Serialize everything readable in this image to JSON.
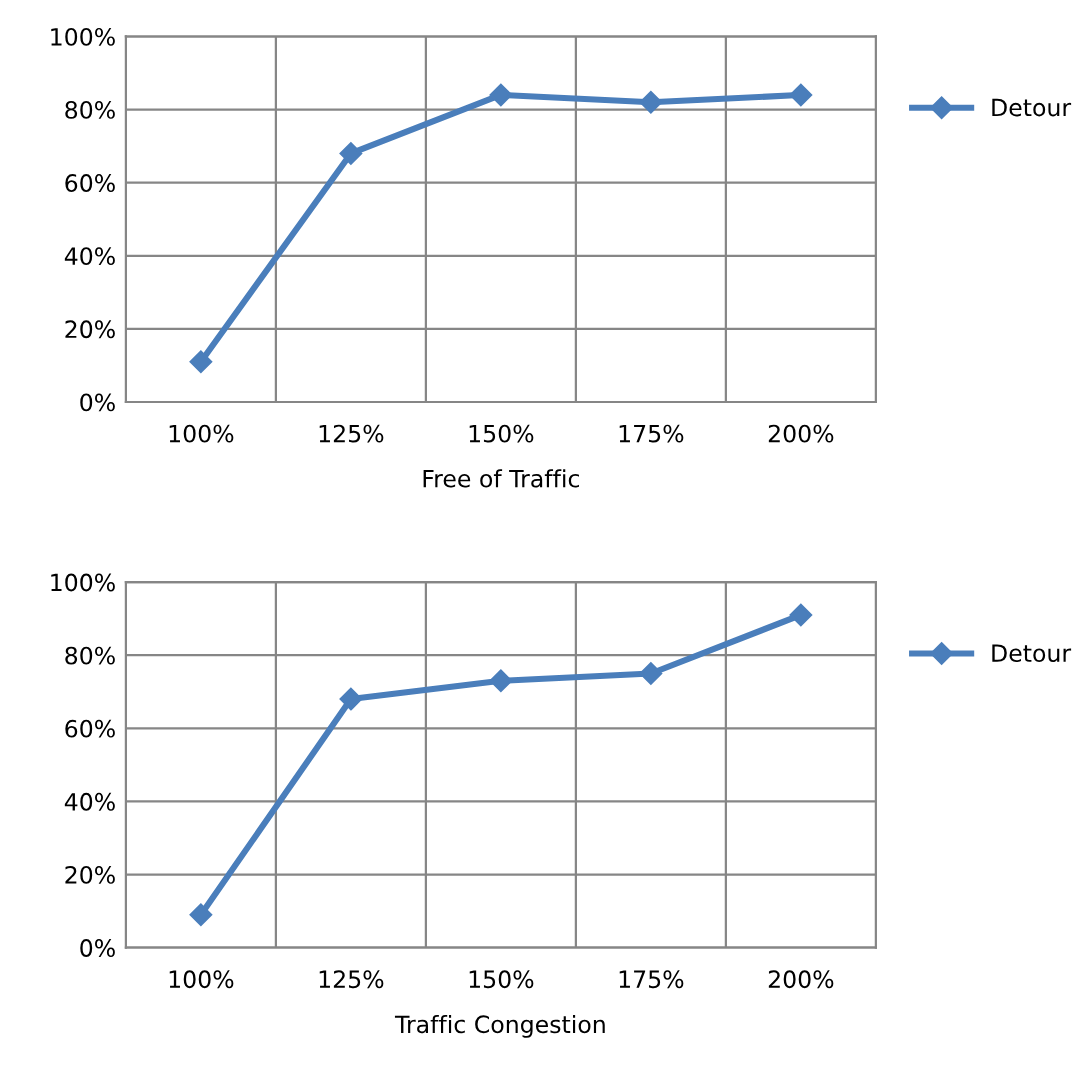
{
  "chart_data": [
    {
      "type": "line",
      "xlabel": "Free of Traffic",
      "categories": [
        "100%",
        "125%",
        "150%",
        "175%",
        "200%"
      ],
      "series": [
        {
          "name": "Detour",
          "color": "#4a7ebb",
          "values": [
            11,
            68,
            84,
            82,
            84
          ]
        }
      ],
      "ylim": [
        0,
        100
      ],
      "yticks": [
        {
          "value": 0,
          "label": "0%"
        },
        {
          "value": 20,
          "label": "20%"
        },
        {
          "value": 40,
          "label": "40%"
        },
        {
          "value": 60,
          "label": "60%"
        },
        {
          "value": 80,
          "label": "80%"
        },
        {
          "value": 100,
          "label": "100%"
        }
      ],
      "grid": true,
      "legend": "right",
      "marker": "diamond",
      "line_style": "solid"
    },
    {
      "type": "line",
      "xlabel": "Traffic Congestion",
      "categories": [
        "100%",
        "125%",
        "150%",
        "175%",
        "200%"
      ],
      "series": [
        {
          "name": "Detour",
          "color": "#4a7ebb",
          "values": [
            9,
            68,
            73,
            75,
            91
          ]
        }
      ],
      "ylim": [
        0,
        100
      ],
      "yticks": [
        {
          "value": 0,
          "label": "0%"
        },
        {
          "value": 20,
          "label": "20%"
        },
        {
          "value": 40,
          "label": "40%"
        },
        {
          "value": 60,
          "label": "60%"
        },
        {
          "value": 80,
          "label": "80%"
        },
        {
          "value": 100,
          "label": "100%"
        }
      ],
      "grid": true,
      "legend": "right",
      "marker": "diamond",
      "line_style": "solid"
    }
  ]
}
